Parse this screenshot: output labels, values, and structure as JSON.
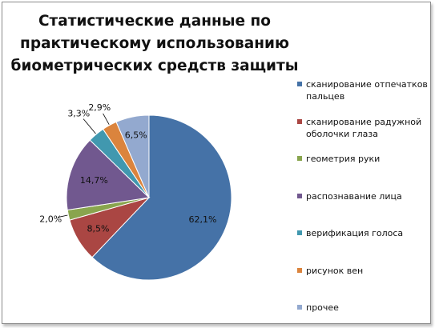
{
  "chart_data": {
    "type": "pie",
    "title": "Статистические данные по практическому использованию биометрических средств защиты",
    "legend_position": "right",
    "slices": [
      {
        "label": "сканирование отпечатков пальцев",
        "value": 62.1,
        "display": "62,1%",
        "color": "#4572A7"
      },
      {
        "label": "сканирование радужной оболочки глаза",
        "value": 8.5,
        "display": "8,5%",
        "color": "#AA4643"
      },
      {
        "label": "геометрия руки",
        "value": 2.0,
        "display": "2,0%",
        "color": "#89A54E"
      },
      {
        "label": "распознавание лица",
        "value": 14.7,
        "display": "14,7%",
        "color": "#71588F"
      },
      {
        "label": "верификация голоса",
        "value": 3.3,
        "display": "3,3%",
        "color": "#4198AF"
      },
      {
        "label": "рисунок вен",
        "value": 2.9,
        "display": "2,9%",
        "color": "#DB843D"
      },
      {
        "label": "прочее",
        "value": 6.5,
        "display": "6,5%",
        "color": "#93A9CF"
      }
    ]
  }
}
